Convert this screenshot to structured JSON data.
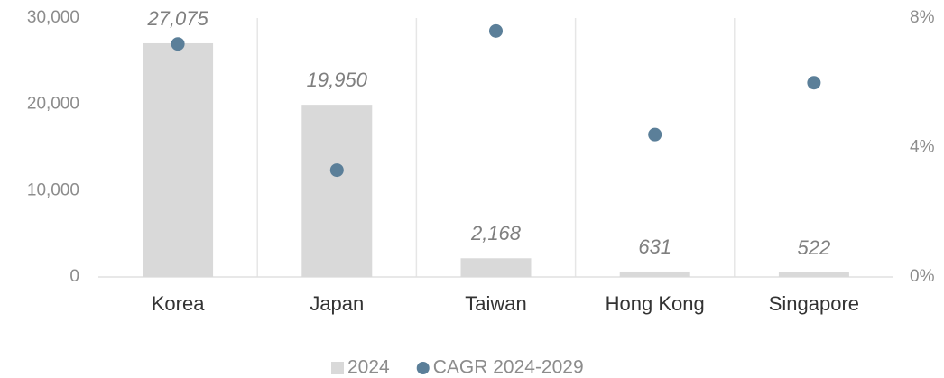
{
  "chart_data": {
    "type": "bar_dot",
    "categories": [
      "Korea",
      "Japan",
      "Taiwan",
      "Hong Kong",
      "Singapore"
    ],
    "series": [
      {
        "name": "2024",
        "color": "#d9d9d9",
        "values": [
          27075,
          19950,
          2168,
          631,
          522
        ],
        "value_labels": [
          "27,075",
          "19,950",
          "2,168",
          "631",
          "522"
        ]
      },
      {
        "name": "CAGR 2024-2029",
        "color": "#5b7f99",
        "axis": "y2",
        "values": [
          7.2,
          3.3,
          7.6,
          4.4,
          6.0
        ]
      }
    ],
    "ylim": [
      0,
      30000
    ],
    "yticks": [
      0,
      {
        "value": 10000,
        "label": "10,000"
      },
      {
        "value": 20000,
        "label": "20,000"
      },
      {
        "value": 30000,
        "label": "30,000"
      }
    ],
    "y2lim": [
      0,
      8
    ],
    "y2ticks": [
      {
        "value": 0,
        "label": "0%"
      },
      {
        "value": 4,
        "label": "4%"
      },
      {
        "value": 8,
        "label": "8%"
      }
    ],
    "legend": "bottom"
  }
}
